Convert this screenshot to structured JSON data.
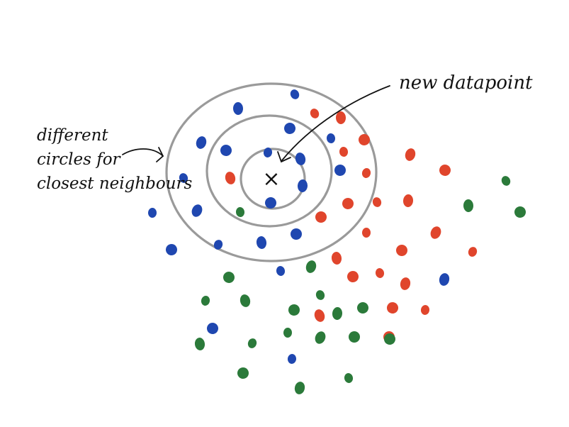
{
  "annotations": {
    "circles_label": [
      "different",
      "circles for",
      "closest neighbours"
    ],
    "new_point_label": "new datapoint",
    "marker": "×"
  },
  "colors": {
    "blue": "#1f47b0",
    "red": "#e0452c",
    "green": "#2b7a3a",
    "ring": "#9a9a9a",
    "ink": "#111111"
  },
  "groups": {
    "blue_count": 22,
    "red_count": 24,
    "green_count": 21
  }
}
